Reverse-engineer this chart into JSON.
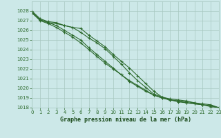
{
  "x": [
    0,
    1,
    2,
    3,
    4,
    5,
    6,
    7,
    8,
    9,
    10,
    11,
    12,
    13,
    14,
    15,
    16,
    17,
    18,
    19,
    20,
    21,
    22,
    23
  ],
  "lines": [
    [
      1028.0,
      1027.2,
      1026.9,
      1026.8,
      1026.5,
      1026.3,
      1025.8,
      1025.2,
      1024.7,
      1024.1,
      1023.3,
      1022.5,
      1021.6,
      1020.8,
      1020.1,
      1019.4,
      1019.1,
      1018.9,
      1018.8,
      1018.7,
      1018.5,
      1018.3,
      1018.1,
      1018.0
    ],
    [
      1027.8,
      1027.1,
      1026.8,
      1026.5,
      1026.0,
      1025.5,
      1025.0,
      1024.2,
      1023.5,
      1022.8,
      1022.1,
      1021.4,
      1020.7,
      1020.2,
      1019.7,
      1019.3,
      1019.0,
      1018.8,
      1018.6,
      1018.5,
      1018.4,
      1018.3,
      1018.2,
      1018.0
    ],
    [
      1027.8,
      1027.0,
      1026.7,
      1026.3,
      1025.8,
      1025.3,
      1024.7,
      1024.0,
      1023.3,
      1022.6,
      1022.0,
      1021.4,
      1020.8,
      1020.3,
      1019.8,
      1019.3,
      1019.0,
      1018.8,
      1018.7,
      1018.5,
      1018.4,
      1018.3,
      1018.2,
      1018.0
    ],
    [
      1027.9,
      1027.1,
      1026.8,
      1026.7,
      1026.5,
      1026.3,
      1026.2,
      1025.5,
      1024.9,
      1024.3,
      1023.5,
      1022.8,
      1022.1,
      1021.3,
      1020.5,
      1019.7,
      1019.1,
      1018.8,
      1018.7,
      1018.6,
      1018.5,
      1018.4,
      1018.3,
      1018.0
    ]
  ],
  "ylim": [
    1018,
    1029
  ],
  "yticks": [
    1018,
    1019,
    1020,
    1021,
    1022,
    1023,
    1024,
    1025,
    1026,
    1027,
    1028
  ],
  "xticks": [
    0,
    1,
    2,
    3,
    4,
    5,
    6,
    7,
    8,
    9,
    10,
    11,
    12,
    13,
    14,
    15,
    16,
    17,
    18,
    19,
    20,
    21,
    22,
    23
  ],
  "line_color": "#2d6a2d",
  "bg_color": "#cce8e8",
  "grid_color": "#a8c8c0",
  "xlabel": "Graphe pression niveau de la mer (hPa)",
  "xlabel_color": "#1a4a1a",
  "tick_color": "#2d6a2d",
  "marker": "+",
  "marker_size": 3,
  "line_width": 0.8
}
